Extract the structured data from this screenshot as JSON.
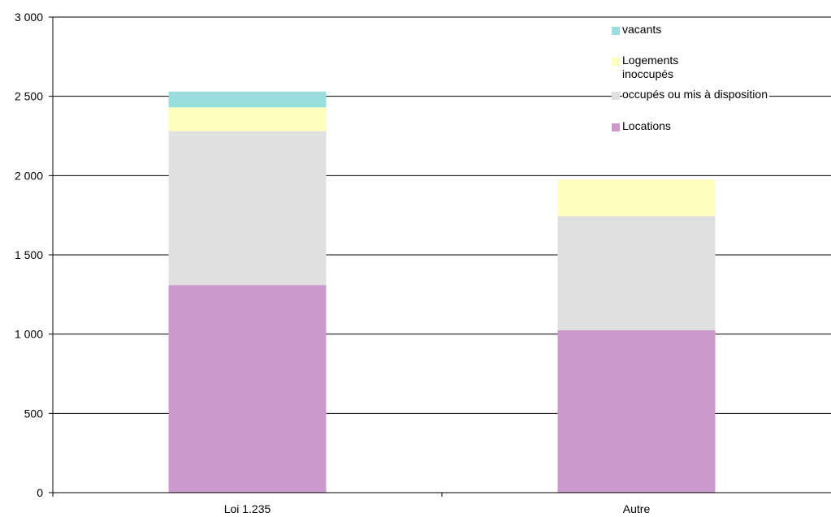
{
  "chart_data": {
    "type": "bar",
    "stacked": true,
    "categories": [
      "Loi 1.235",
      "Autre"
    ],
    "series": [
      {
        "name": "Locations",
        "color": "#cc99cc",
        "values": [
          1310,
          1025
        ]
      },
      {
        "name": "occupés ou mis à disposition",
        "color": "#e0e0e0",
        "values": [
          970,
          720
        ]
      },
      {
        "name": "Logements inoccupés",
        "color": "#ffffc0",
        "values": [
          150,
          230
        ]
      },
      {
        "name": "vacants",
        "color": "#99dddd",
        "values": [
          100,
          0
        ]
      }
    ],
    "legend_lines": {
      "vacants": [
        "vacants"
      ],
      "inoccupes": [
        "Logements",
        "inoccupés"
      ],
      "occupes": [
        "occupés ou mis à disposition"
      ],
      "locations": [
        "Locations"
      ]
    },
    "yticks": [
      "0",
      "500",
      "1 000",
      "1 500",
      "2 000",
      "2 500",
      "3 000"
    ],
    "ylim": [
      0,
      3000
    ],
    "grid": true,
    "legend_position": "top-right"
  }
}
